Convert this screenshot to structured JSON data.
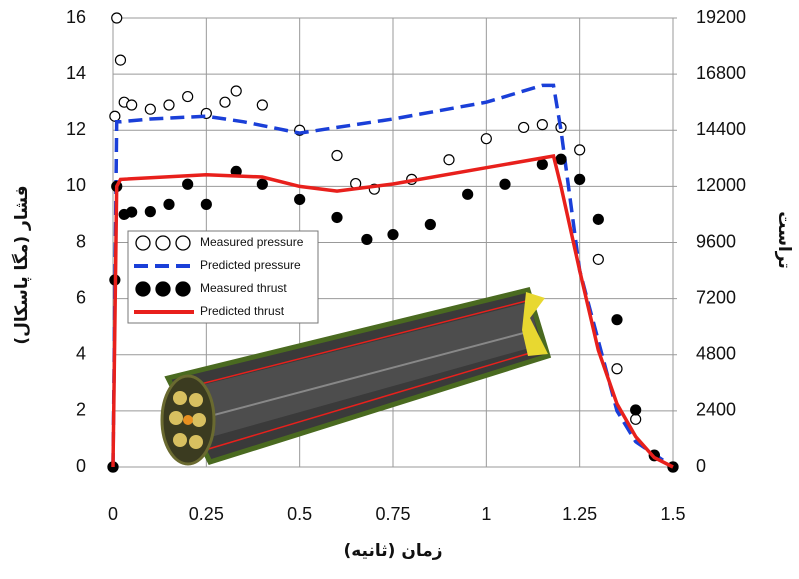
{
  "chart_data": {
    "type": "line",
    "x_label": "زمان (ثانیه)",
    "y_label": "فشار (مگا پاسکال)",
    "y2_label": "تراست",
    "xlim": [
      0,
      1.5
    ],
    "xticks": [
      0,
      0.25,
      0.5,
      0.75,
      1,
      1.25,
      1.5
    ],
    "ylim": [
      0,
      16
    ],
    "yticks": [
      0,
      2,
      4,
      6,
      8,
      10,
      12,
      14,
      16
    ],
    "y2lim": [
      0,
      19200
    ],
    "y2ticks": [
      0,
      2400,
      4800,
      7200,
      9600,
      12000,
      14400,
      16800,
      19200
    ],
    "grid": true,
    "legend": "left",
    "series": [
      {
        "name": "Measured pressure",
        "color": "#000000",
        "style": "open-circle",
        "x": [
          0,
          0.005,
          0.01,
          0.02,
          0.03,
          0.05,
          0.1,
          0.15,
          0.2,
          0.25,
          0.3,
          0.33,
          0.4,
          0.5,
          0.6,
          0.65,
          0.7,
          0.8,
          0.9,
          1.0,
          1.1,
          1.15,
          1.2,
          1.25,
          1.3,
          1.35,
          1.4,
          1.45,
          1.5
        ],
        "values": [
          0,
          12.5,
          16,
          14.5,
          13.0,
          12.9,
          12.75,
          12.9,
          13.2,
          12.6,
          13.0,
          13.4,
          12.9,
          12.0,
          11.1,
          10.1,
          9.9,
          10.25,
          10.95,
          11.7,
          12.1,
          12.2,
          12.1,
          11.3,
          7.4,
          3.5,
          1.7,
          0.4,
          0
        ]
      },
      {
        "name": "Predicted pressure",
        "color": "#1a3fd8",
        "style": "dashed",
        "x": [
          0,
          0.01,
          0.02,
          0.1,
          0.25,
          0.35,
          0.5,
          0.6,
          0.75,
          1.0,
          1.15,
          1.18,
          1.2,
          1.25,
          1.3,
          1.35,
          1.4,
          1.5
        ],
        "values": [
          0,
          12.3,
          12.3,
          12.4,
          12.5,
          12.3,
          11.9,
          12.1,
          12.4,
          13.0,
          13.6,
          13.6,
          12,
          7,
          4.5,
          2,
          0.9,
          0
        ]
      },
      {
        "name": "Measured thrust",
        "color": "#000000",
        "style": "filled-circle",
        "axis": "y2",
        "x": [
          0,
          0.005,
          0.01,
          0.03,
          0.05,
          0.1,
          0.15,
          0.2,
          0.25,
          0.33,
          0.4,
          0.5,
          0.6,
          0.68,
          0.75,
          0.85,
          0.95,
          1.05,
          1.15,
          1.2,
          1.25,
          1.3,
          1.35,
          1.4,
          1.45,
          1.5
        ],
        "values": [
          0,
          8000,
          12000,
          10800,
          10900,
          10920,
          11230,
          12090,
          11230,
          12640,
          12090,
          11440,
          10670,
          9730,
          9940,
          10370,
          11660,
          12090,
          12940,
          13160,
          12300,
          10590,
          6300,
          2440,
          510,
          0
        ]
      },
      {
        "name": "Predicted thrust",
        "color": "#e8201c",
        "style": "solid",
        "axis": "y2",
        "x": [
          0,
          0.01,
          0.02,
          0.25,
          0.4,
          0.5,
          0.6,
          0.75,
          1.0,
          1.18,
          1.2,
          1.25,
          1.3,
          1.35,
          1.4,
          1.45,
          1.5
        ],
        "values": [
          0,
          12000,
          12300,
          12500,
          12400,
          12000,
          11800,
          12100,
          12800,
          13300,
          12000,
          8400,
          5000,
          2700,
          1300,
          400,
          0
        ]
      }
    ]
  }
}
